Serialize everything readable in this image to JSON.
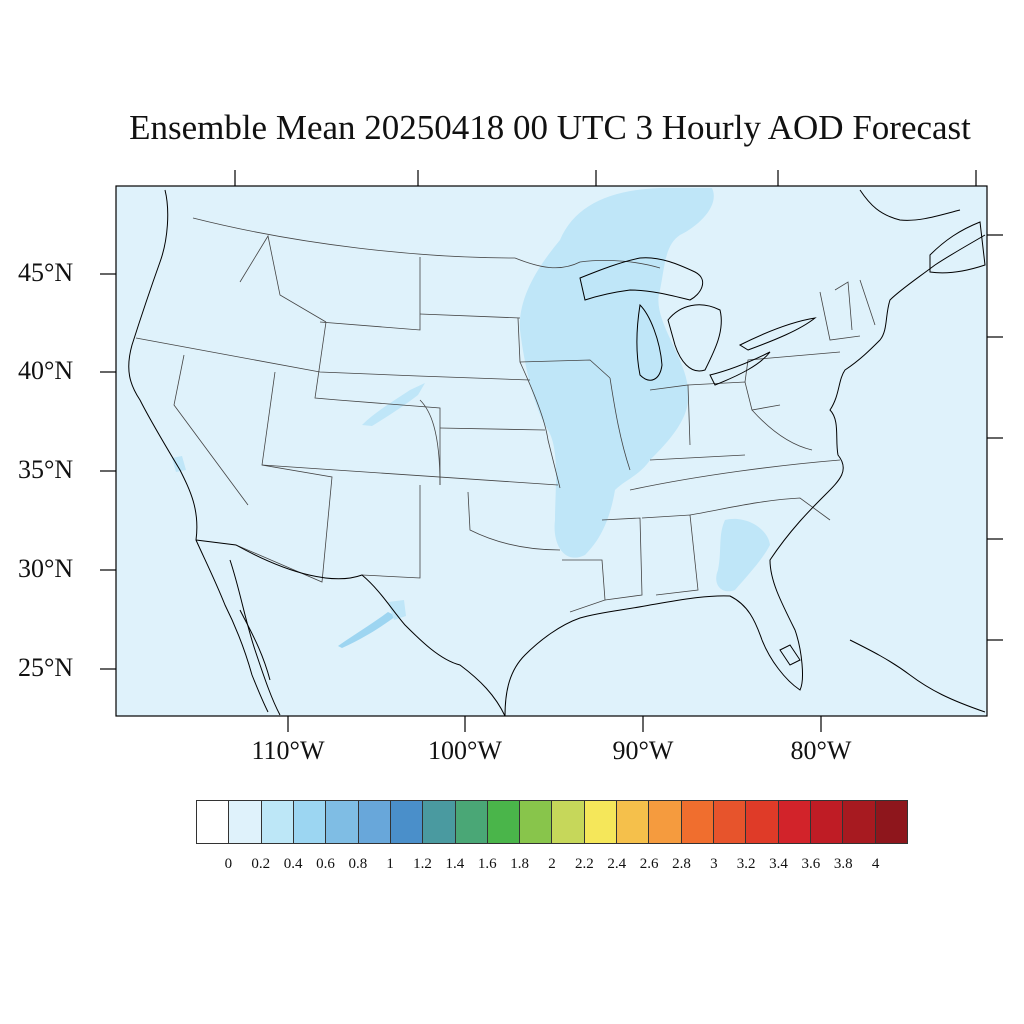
{
  "title": "Ensemble Mean 20250418 00 UTC 3 Hourly AOD Forecast",
  "map": {
    "background_color": "#dff2fb",
    "plume_color": "#bfe6f8",
    "plume_dark_color": "#9dd5f1",
    "coast_color": "#000000",
    "state_line_color": "#444444"
  },
  "latitude_labels": [
    "45°N",
    "40°N",
    "35°N",
    "30°N",
    "25°N"
  ],
  "longitude_labels": [
    "110°W",
    "100°W",
    "90°W",
    "80°W"
  ],
  "colorbar": {
    "colors": [
      "#ffffff",
      "#dff2fb",
      "#bde7f7",
      "#9cd6f2",
      "#7fbde4",
      "#68a7da",
      "#4a8fca",
      "#4a9aa0",
      "#4aa776",
      "#4ab54a",
      "#88c54b",
      "#c6d75a",
      "#f5e75a",
      "#f5c04b",
      "#f59b3e",
      "#f06e2e",
      "#e7542c",
      "#df3b28",
      "#d2232a",
      "#bf1c25",
      "#a71a20",
      "#8e161c"
    ],
    "labels": [
      "0",
      "0.2",
      "0.4",
      "0.6",
      "0.8",
      "1",
      "1.2",
      "1.4",
      "1.6",
      "1.8",
      "2",
      "2.2",
      "2.4",
      "2.6",
      "2.8",
      "3",
      "3.2",
      "3.4",
      "3.6",
      "3.8",
      "4"
    ]
  }
}
